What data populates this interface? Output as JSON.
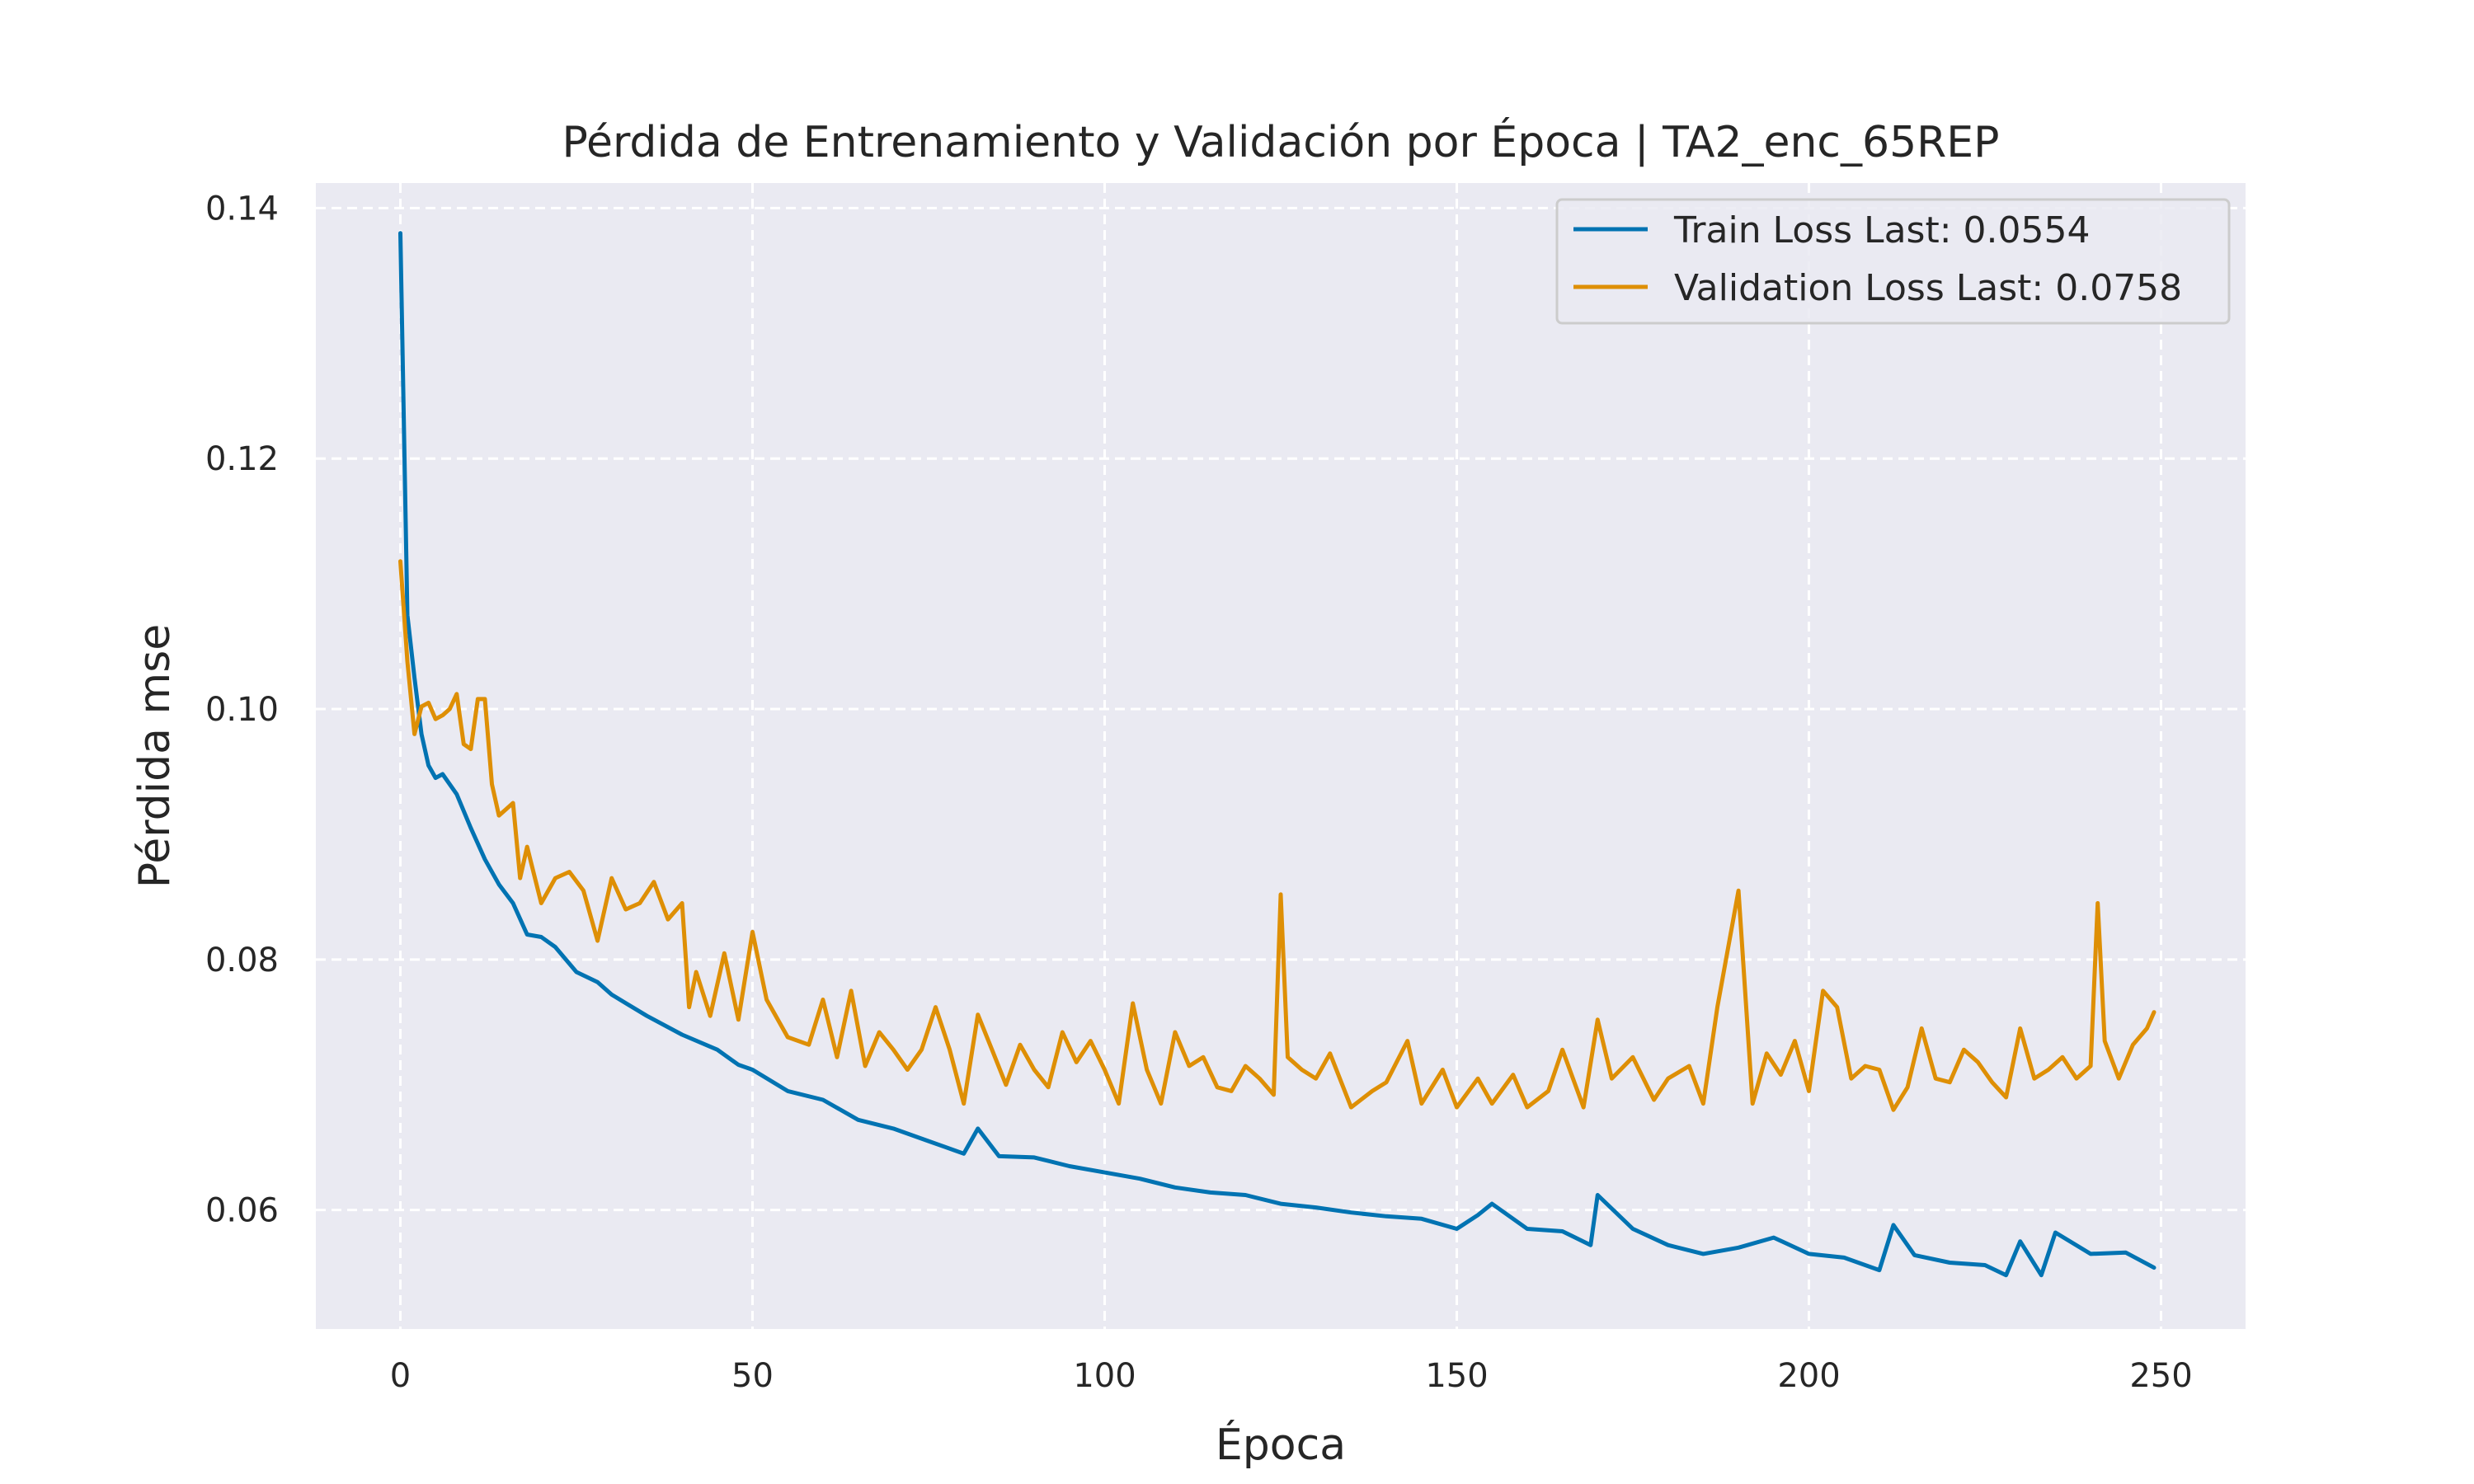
{
  "chart_data": {
    "type": "line",
    "title": "Pérdida de Entrenamiento y Validación por Época | TA2_enc_65REP",
    "xlabel": "Época",
    "ylabel": "Pérdida mse",
    "xlim": [
      -12,
      262
    ],
    "ylim": [
      0.0505,
      0.142
    ],
    "xticks": [
      0,
      50,
      100,
      150,
      200,
      250
    ],
    "yticks": [
      0.06,
      0.08,
      0.1,
      0.12,
      0.14
    ],
    "ytick_labels": [
      "0.06",
      "0.08",
      "0.10",
      "0.12",
      "0.14"
    ],
    "grid": true,
    "legend_position": "top-right",
    "series": [
      {
        "name": "Train Loss Last: 0.0554",
        "color": "#0173b2",
        "x": [
          0,
          1,
          2,
          3,
          4,
          5,
          6,
          8,
          10,
          12,
          14,
          16,
          18,
          20,
          22,
          25,
          28,
          30,
          35,
          40,
          45,
          48,
          50,
          55,
          60,
          65,
          70,
          75,
          80,
          82,
          85,
          90,
          95,
          100,
          105,
          110,
          115,
          120,
          125,
          130,
          135,
          140,
          145,
          150,
          153,
          155,
          160,
          165,
          169,
          170,
          175,
          180,
          185,
          190,
          195,
          200,
          205,
          210,
          212,
          215,
          220,
          225,
          228,
          230,
          233,
          235,
          240,
          245,
          249
        ],
        "y": [
          0.138,
          0.1075,
          0.1025,
          0.098,
          0.0955,
          0.0945,
          0.0948,
          0.0932,
          0.0905,
          0.088,
          0.086,
          0.0845,
          0.082,
          0.0818,
          0.081,
          0.079,
          0.0782,
          0.0772,
          0.0755,
          0.074,
          0.0728,
          0.0716,
          0.0712,
          0.0695,
          0.0688,
          0.0672,
          0.0665,
          0.0655,
          0.0645,
          0.0665,
          0.0643,
          0.0642,
          0.0635,
          0.063,
          0.0625,
          0.0618,
          0.0614,
          0.0612,
          0.0605,
          0.0602,
          0.0598,
          0.0595,
          0.0593,
          0.0585,
          0.0596,
          0.0605,
          0.0585,
          0.0583,
          0.0572,
          0.0612,
          0.0585,
          0.0572,
          0.0565,
          0.057,
          0.0578,
          0.0565,
          0.0562,
          0.0552,
          0.0588,
          0.0564,
          0.0558,
          0.0556,
          0.0548,
          0.0575,
          0.0548,
          0.0582,
          0.0565,
          0.0566,
          0.0554
        ]
      },
      {
        "name": "Validation Loss Last: 0.0758",
        "color": "#de8f05",
        "x": [
          0,
          1,
          2,
          3,
          4,
          5,
          6,
          7,
          8,
          9,
          10,
          11,
          12,
          13,
          14,
          15,
          16,
          17,
          18,
          20,
          22,
          24,
          26,
          28,
          30,
          32,
          34,
          36,
          38,
          40,
          41,
          42,
          44,
          46,
          48,
          50,
          52,
          55,
          58,
          60,
          62,
          64,
          66,
          68,
          70,
          72,
          74,
          76,
          78,
          80,
          82,
          84,
          86,
          88,
          90,
          92,
          94,
          96,
          98,
          100,
          102,
          104,
          106,
          108,
          110,
          112,
          114,
          116,
          118,
          120,
          122,
          124,
          125,
          126,
          128,
          130,
          132,
          135,
          138,
          140,
          143,
          145,
          148,
          150,
          153,
          155,
          158,
          160,
          163,
          165,
          168,
          170,
          172,
          175,
          178,
          180,
          183,
          185,
          187,
          190,
          192,
          194,
          196,
          198,
          200,
          202,
          204,
          206,
          208,
          210,
          212,
          214,
          216,
          218,
          220,
          222,
          224,
          226,
          228,
          230,
          232,
          234,
          236,
          238,
          240,
          241,
          242,
          244,
          246,
          248,
          249
        ],
        "y": [
          0.1118,
          0.1038,
          0.098,
          0.1002,
          0.1005,
          0.0992,
          0.0995,
          0.1,
          0.1012,
          0.0972,
          0.0968,
          0.1008,
          0.1008,
          0.094,
          0.0915,
          0.092,
          0.0925,
          0.0865,
          0.089,
          0.0845,
          0.0865,
          0.087,
          0.0855,
          0.0815,
          0.0865,
          0.084,
          0.0845,
          0.0862,
          0.0832,
          0.0845,
          0.0762,
          0.079,
          0.0755,
          0.0805,
          0.0752,
          0.0822,
          0.0768,
          0.0738,
          0.0732,
          0.0768,
          0.0722,
          0.0775,
          0.0715,
          0.0742,
          0.0728,
          0.0712,
          0.0728,
          0.0762,
          0.0728,
          0.0685,
          0.0756,
          0.0728,
          0.07,
          0.0732,
          0.0712,
          0.0698,
          0.0742,
          0.0718,
          0.0735,
          0.0712,
          0.0685,
          0.0765,
          0.0712,
          0.0685,
          0.0742,
          0.0715,
          0.0722,
          0.0698,
          0.0695,
          0.0715,
          0.0705,
          0.0692,
          0.0852,
          0.0722,
          0.0712,
          0.0705,
          0.0725,
          0.0682,
          0.0695,
          0.0702,
          0.0735,
          0.0685,
          0.0712,
          0.0682,
          0.0705,
          0.0685,
          0.0708,
          0.0682,
          0.0695,
          0.0728,
          0.0682,
          0.0752,
          0.0705,
          0.0722,
          0.0688,
          0.0705,
          0.0715,
          0.0685,
          0.0762,
          0.0855,
          0.0685,
          0.0725,
          0.0708,
          0.0735,
          0.0695,
          0.0775,
          0.0762,
          0.0705,
          0.0715,
          0.0712,
          0.068,
          0.0698,
          0.0745,
          0.0705,
          0.0702,
          0.0728,
          0.0718,
          0.0702,
          0.069,
          0.0745,
          0.0705,
          0.0712,
          0.0722,
          0.0705,
          0.0715,
          0.0845,
          0.0735,
          0.0705,
          0.0732,
          0.0745,
          0.0758
        ]
      }
    ]
  }
}
